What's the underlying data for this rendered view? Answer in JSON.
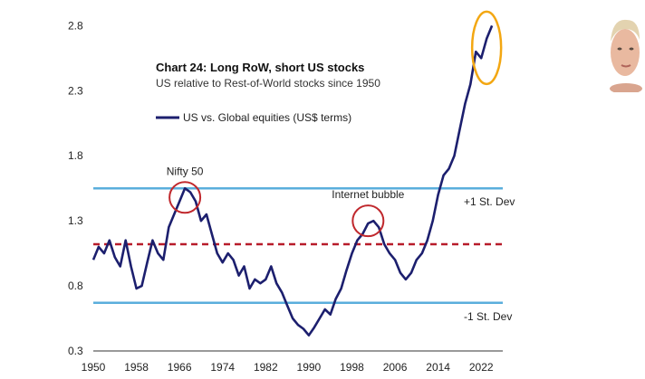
{
  "chart_data": {
    "type": "line",
    "title": "Chart 24: Long RoW, short US stocks",
    "subtitle": "US relative to Rest-of-World stocks since 1950",
    "xlabel": "",
    "ylabel": "",
    "xlim": [
      1950,
      2026
    ],
    "ylim": [
      0.3,
      2.9
    ],
    "x_ticks": [
      "1950",
      "1958",
      "1966",
      "1974",
      "1982",
      "1990",
      "1998",
      "2006",
      "2014",
      "2022"
    ],
    "y_ticks": [
      "0.3",
      "0.8",
      "1.3",
      "1.8",
      "2.3",
      "2.8"
    ],
    "grid": false,
    "legend_position": "top-left",
    "series": [
      {
        "name": "US vs. Global equities (US$ terms)",
        "color": "#1c1f6e",
        "x": [
          1950,
          1951,
          1952,
          1953,
          1954,
          1955,
          1956,
          1957,
          1958,
          1959,
          1960,
          1961,
          1962,
          1963,
          1964,
          1965,
          1966,
          1967,
          1968,
          1969,
          1970,
          1971,
          1972,
          1973,
          1974,
          1975,
          1976,
          1977,
          1978,
          1979,
          1980,
          1981,
          1982,
          1983,
          1984,
          1985,
          1986,
          1987,
          1988,
          1989,
          1990,
          1991,
          1992,
          1993,
          1994,
          1995,
          1996,
          1997,
          1998,
          1999,
          2000,
          2001,
          2002,
          2003,
          2004,
          2005,
          2006,
          2007,
          2008,
          2009,
          2010,
          2011,
          2012,
          2013,
          2014,
          2015,
          2016,
          2017,
          2018,
          2019,
          2020,
          2021,
          2022,
          2023,
          2024
        ],
        "y": [
          1.0,
          1.1,
          1.05,
          1.15,
          1.02,
          0.95,
          1.15,
          0.95,
          0.78,
          0.8,
          0.98,
          1.15,
          1.05,
          1.0,
          1.25,
          1.35,
          1.45,
          1.55,
          1.52,
          1.45,
          1.3,
          1.35,
          1.2,
          1.05,
          0.98,
          1.05,
          1.0,
          0.88,
          0.95,
          0.78,
          0.85,
          0.82,
          0.85,
          0.95,
          0.82,
          0.75,
          0.65,
          0.55,
          0.5,
          0.47,
          0.42,
          0.48,
          0.55,
          0.62,
          0.58,
          0.7,
          0.78,
          0.92,
          1.05,
          1.15,
          1.2,
          1.28,
          1.3,
          1.25,
          1.12,
          1.05,
          1.0,
          0.9,
          0.85,
          0.9,
          1.0,
          1.05,
          1.15,
          1.3,
          1.5,
          1.65,
          1.7,
          1.8,
          2.0,
          2.2,
          2.35,
          2.6,
          2.55,
          2.7,
          2.8
        ]
      }
    ],
    "reference_lines": [
      {
        "label": "+1 St. Dev",
        "y": 1.55,
        "color": "#5aaedc",
        "style": "solid"
      },
      {
        "label": "",
        "y": 1.12,
        "color": "#b81c2a",
        "style": "dashed"
      },
      {
        "label": "-1 St. Dev",
        "y": 0.67,
        "color": "#5aaedc",
        "style": "solid"
      }
    ],
    "annotations": [
      {
        "label": "Nifty 50",
        "x": 1967,
        "y": 1.48,
        "circle_color": "#c0282d"
      },
      {
        "label": "Internet bubble",
        "x": 2001,
        "y": 1.3,
        "circle_color": "#c0282d"
      },
      {
        "label": "",
        "x": 2023,
        "y": 2.63,
        "circle_color": "#f3a712"
      }
    ]
  }
}
